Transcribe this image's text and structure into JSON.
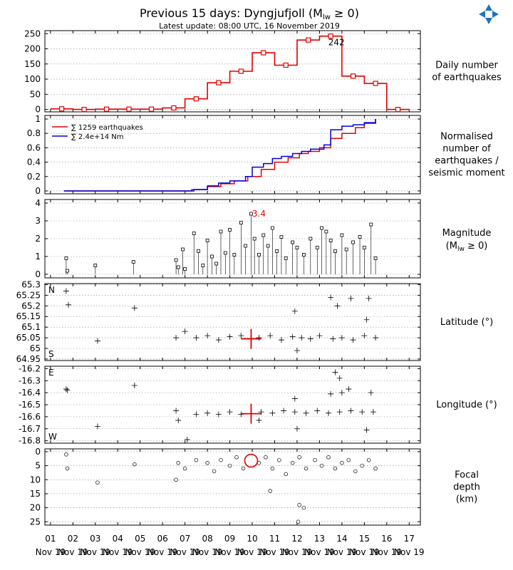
{
  "chart_title": "Previous 15 days: Dyngjufjoll (M",
  "chart_title_sub": "lw",
  "chart_title_tail": " ≥ 0)",
  "update_text": "Latest update: 08:00 UTC, 16 November 2019",
  "logo_icon": "four-arrows-logo-icon",
  "colors": {
    "red": "#e00000",
    "blue": "#0000dd",
    "logo": "#1e73be"
  },
  "chart_data": [
    {
      "type": "bar",
      "panel": "daily",
      "label_lines": [
        "Daily number",
        "of earthquakes"
      ],
      "categories": [
        1,
        2,
        3,
        4,
        5,
        6,
        7,
        8,
        9,
        10,
        11,
        12,
        13,
        14,
        15,
        16
      ],
      "values": [
        2,
        0,
        1,
        1,
        1,
        5,
        35,
        88,
        126,
        187,
        146,
        229,
        242,
        110,
        86,
        0
      ],
      "xlim": [
        0.75,
        17.5
      ],
      "ylim": [
        -8,
        260
      ],
      "yticks": [
        0,
        50,
        100,
        150,
        200,
        250
      ],
      "annotation": {
        "text": "242",
        "x": 13.5,
        "y": 242
      }
    },
    {
      "type": "line",
      "panel": "cumulative",
      "label_lines": [
        "Normalised",
        "number of",
        "earthquakes /",
        "seismic moment"
      ],
      "legend": [
        "∑ 1259 earthquakes",
        "∑ 2.4e+14 Nm"
      ],
      "legend_position": "top-left",
      "xlim": [
        0.75,
        17.5
      ],
      "ylim": [
        -0.04,
        1.05
      ],
      "yticks": [
        0.0,
        0.2,
        0.4,
        0.6,
        0.8,
        1.0
      ],
      "series": [
        {
          "color": "red",
          "x": [
            1.6,
            6.5,
            7.3,
            8.0,
            8.6,
            9.2,
            9.8,
            10.4,
            11.0,
            11.6,
            12.1,
            12.5,
            13.0,
            13.5,
            14.0,
            14.6,
            15.0,
            15.5
          ],
          "y": [
            0,
            0,
            0.02,
            0.06,
            0.1,
            0.14,
            0.2,
            0.3,
            0.4,
            0.46,
            0.52,
            0.55,
            0.6,
            0.73,
            0.8,
            0.88,
            0.94,
            1.0
          ]
        },
        {
          "color": "blue",
          "x": [
            1.6,
            6.6,
            7.4,
            8.0,
            8.5,
            9.0,
            9.7,
            10.0,
            10.5,
            10.9,
            11.3,
            11.8,
            12.2,
            12.6,
            13.2,
            13.5,
            14.0,
            14.5,
            15.0,
            15.5
          ],
          "y": [
            0,
            0,
            0.02,
            0.07,
            0.11,
            0.14,
            0.2,
            0.33,
            0.38,
            0.45,
            0.48,
            0.52,
            0.55,
            0.58,
            0.64,
            0.85,
            0.9,
            0.92,
            0.95,
            1.0
          ]
        }
      ]
    },
    {
      "type": "scatter",
      "panel": "magnitude",
      "label_lines": [
        "Magnitude",
        "(M",
        "lw",
        ")"
      ],
      "label_math": "≥ 0",
      "xlim": [
        0.75,
        17.5
      ],
      "ylim": [
        -0.2,
        4.2
      ],
      "yticks": [
        0,
        1,
        2,
        3,
        4
      ],
      "max_label": {
        "text": "3.4",
        "x": 9.95,
        "y": 3.4
      },
      "points": [
        [
          1.7,
          0.9
        ],
        [
          1.75,
          0.2
        ],
        [
          3.0,
          0.5
        ],
        [
          4.7,
          0.7
        ],
        [
          6.6,
          0.8
        ],
        [
          6.7,
          0.4
        ],
        [
          6.9,
          1.4
        ],
        [
          7.0,
          0.3
        ],
        [
          7.4,
          2.3
        ],
        [
          7.6,
          1.3
        ],
        [
          7.8,
          0.5
        ],
        [
          8.0,
          1.9
        ],
        [
          8.2,
          1.0
        ],
        [
          8.4,
          0.6
        ],
        [
          8.6,
          2.4
        ],
        [
          8.8,
          1.2
        ],
        [
          9.0,
          2.5
        ],
        [
          9.2,
          1.1
        ],
        [
          9.5,
          2.9
        ],
        [
          9.7,
          1.6
        ],
        [
          9.95,
          3.4
        ],
        [
          10.1,
          2.0
        ],
        [
          10.3,
          1.1
        ],
        [
          10.5,
          2.2
        ],
        [
          10.7,
          1.6
        ],
        [
          10.9,
          2.6
        ],
        [
          11.1,
          1.3
        ],
        [
          11.3,
          2.1
        ],
        [
          11.5,
          0.9
        ],
        [
          11.8,
          1.8
        ],
        [
          12.0,
          1.5
        ],
        [
          12.3,
          1.1
        ],
        [
          12.6,
          2.0
        ],
        [
          12.9,
          1.5
        ],
        [
          13.1,
          2.6
        ],
        [
          13.3,
          2.4
        ],
        [
          13.5,
          1.9
        ],
        [
          13.7,
          1.3
        ],
        [
          14.0,
          2.2
        ],
        [
          14.2,
          1.4
        ],
        [
          14.5,
          1.8
        ],
        [
          14.8,
          2.1
        ],
        [
          15.0,
          1.5
        ],
        [
          15.3,
          2.8
        ],
        [
          15.5,
          0.9
        ]
      ]
    },
    {
      "type": "scatter",
      "panel": "latitude",
      "label_lines": [
        "Latitude (°)"
      ],
      "corner_top": "N",
      "corner_bottom": "S",
      "xlim": [
        0.75,
        17.5
      ],
      "ylim": [
        64.943,
        65.305
      ],
      "yticks": [
        64.95,
        65.0,
        65.05,
        65.1,
        65.15,
        65.2,
        65.25,
        65.3
      ],
      "highlight": {
        "x": 9.95,
        "y": 65.045
      },
      "points": [
        [
          1.7,
          65.27
        ],
        [
          1.8,
          65.205
        ],
        [
          3.1,
          65.035
        ],
        [
          4.75,
          65.19
        ],
        [
          6.6,
          65.05
        ],
        [
          7.0,
          65.08
        ],
        [
          7.5,
          65.05
        ],
        [
          8.0,
          65.06
        ],
        [
          8.5,
          65.04
        ],
        [
          9.0,
          65.055
        ],
        [
          9.5,
          65.06
        ],
        [
          10.3,
          65.05
        ],
        [
          10.8,
          65.06
        ],
        [
          11.3,
          65.04
        ],
        [
          11.8,
          65.055
        ],
        [
          12.2,
          65.05
        ],
        [
          12.6,
          65.045
        ],
        [
          13.0,
          65.06
        ],
        [
          13.5,
          65.24
        ],
        [
          13.6,
          65.045
        ],
        [
          14.0,
          65.05
        ],
        [
          14.5,
          65.04
        ],
        [
          15.0,
          65.06
        ],
        [
          15.5,
          65.05
        ],
        [
          11.9,
          65.175
        ],
        [
          12.0,
          64.99
        ],
        [
          14.4,
          65.235
        ],
        [
          15.2,
          65.235
        ],
        [
          13.8,
          65.2
        ],
        [
          15.1,
          65.135
        ]
      ]
    },
    {
      "type": "scatter",
      "panel": "longitude",
      "label_lines": [
        "Longitude (°)"
      ],
      "corner_top": "E",
      "corner_bottom": "W",
      "xlim": [
        0.75,
        17.5
      ],
      "ylim": [
        -16.82,
        -16.18
      ],
      "yticks": [
        -16.2,
        -16.3,
        -16.4,
        -16.5,
        -16.6,
        -16.7,
        -16.8
      ],
      "highlight": {
        "x": 9.95,
        "y": -16.575
      },
      "points": [
        [
          1.7,
          -16.37
        ],
        [
          1.75,
          -16.38
        ],
        [
          3.1,
          -16.68
        ],
        [
          4.75,
          -16.34
        ],
        [
          6.6,
          -16.55
        ],
        [
          6.7,
          -16.63
        ],
        [
          7.1,
          -16.79
        ],
        [
          7.5,
          -16.58
        ],
        [
          8.0,
          -16.57
        ],
        [
          8.5,
          -16.58
        ],
        [
          9.0,
          -16.56
        ],
        [
          9.5,
          -16.58
        ],
        [
          10.4,
          -16.56
        ],
        [
          10.9,
          -16.57
        ],
        [
          11.4,
          -16.55
        ],
        [
          11.9,
          -16.56
        ],
        [
          12.4,
          -16.57
        ],
        [
          12.9,
          -16.55
        ],
        [
          13.4,
          -16.57
        ],
        [
          13.9,
          -16.56
        ],
        [
          14.4,
          -16.55
        ],
        [
          14.9,
          -16.56
        ],
        [
          15.4,
          -16.56
        ],
        [
          13.5,
          -16.41
        ],
        [
          14.0,
          -16.4
        ],
        [
          15.3,
          -16.4
        ],
        [
          13.7,
          -16.23
        ],
        [
          13.9,
          -16.28
        ],
        [
          14.3,
          -16.37
        ],
        [
          15.1,
          -16.71
        ],
        [
          12.0,
          -16.7
        ],
        [
          11.9,
          -16.45
        ],
        [
          10.3,
          -16.63
        ]
      ]
    },
    {
      "type": "scatter",
      "panel": "depth",
      "label_lines": [
        "Focal",
        "depth",
        "(km)"
      ],
      "xlim": [
        0.75,
        17.5
      ],
      "ylim": [
        26.2,
        -1
      ],
      "yticks": [
        0,
        5,
        10,
        15,
        20,
        25
      ],
      "highlight": {
        "x": 9.95,
        "y": 3.2,
        "m": 3.4
      },
      "points": [
        [
          1.7,
          1
        ],
        [
          1.75,
          6
        ],
        [
          3.1,
          11
        ],
        [
          4.75,
          4.5
        ],
        [
          6.6,
          10
        ],
        [
          6.7,
          4
        ],
        [
          7.0,
          6
        ],
        [
          7.5,
          3
        ],
        [
          8.0,
          4
        ],
        [
          8.3,
          7
        ],
        [
          8.6,
          3
        ],
        [
          9.0,
          5
        ],
        [
          9.3,
          2
        ],
        [
          9.6,
          6
        ],
        [
          10.3,
          4
        ],
        [
          10.6,
          2
        ],
        [
          10.9,
          6
        ],
        [
          11.2,
          3
        ],
        [
          11.5,
          8
        ],
        [
          11.8,
          4
        ],
        [
          12.1,
          2
        ],
        [
          12.4,
          6
        ],
        [
          12.8,
          3
        ],
        [
          13.1,
          5
        ],
        [
          13.4,
          2
        ],
        [
          13.7,
          6
        ],
        [
          14.0,
          4
        ],
        [
          14.3,
          3
        ],
        [
          14.6,
          7
        ],
        [
          14.9,
          5
        ],
        [
          15.2,
          3
        ],
        [
          15.5,
          6
        ],
        [
          12.1,
          19
        ],
        [
          12.3,
          20
        ],
        [
          12.05,
          25
        ],
        [
          10.8,
          14
        ]
      ]
    },
    {
      "type": "axis",
      "panel": "x-axis",
      "ticks": [
        1,
        2,
        3,
        4,
        5,
        6,
        7,
        8,
        9,
        10,
        11,
        12,
        13,
        14,
        15,
        16,
        17
      ],
      "day_labels": [
        "01",
        "02",
        "03",
        "04",
        "05",
        "06",
        "07",
        "08",
        "09",
        "10",
        "11",
        "12",
        "13",
        "14",
        "15",
        "16",
        "17"
      ],
      "month_label": "Nov 19"
    }
  ]
}
